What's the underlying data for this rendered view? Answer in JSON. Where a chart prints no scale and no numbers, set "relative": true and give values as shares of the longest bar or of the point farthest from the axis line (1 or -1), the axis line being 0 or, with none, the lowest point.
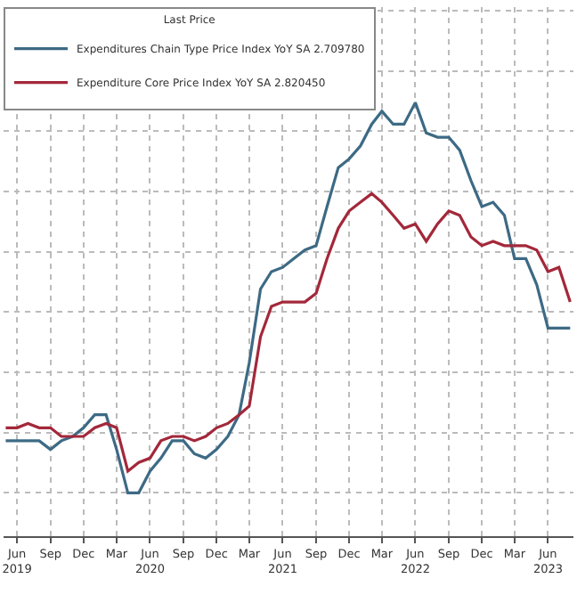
{
  "chart_data": {
    "type": "line",
    "relative": true,
    "legend_title": "Last Price",
    "legend": "top left",
    "grid": true,
    "line_style": "solid",
    "marker": "none",
    "x": [
      "2019-05",
      "2019-06",
      "2019-07",
      "2019-08",
      "2019-09",
      "2019-10",
      "2019-11",
      "2019-12",
      "2020-01",
      "2020-02",
      "2020-03",
      "2020-04",
      "2020-05",
      "2020-06",
      "2020-07",
      "2020-08",
      "2020-09",
      "2020-10",
      "2020-11",
      "2020-12",
      "2021-01",
      "2021-02",
      "2021-03",
      "2021-04",
      "2021-05",
      "2021-06",
      "2021-07",
      "2021-08",
      "2021-09",
      "2021-10",
      "2021-11",
      "2021-12",
      "2022-01",
      "2022-02",
      "2022-03",
      "2022-04",
      "2022-05",
      "2022-06",
      "2022-07",
      "2022-08",
      "2022-09",
      "2022-10",
      "2022-11",
      "2022-12",
      "2023-01",
      "2023-02",
      "2023-03",
      "2023-04",
      "2023-05",
      "2023-06",
      "2023-07",
      "2023-08"
    ],
    "xlim": [
      "2019-04-25",
      "2023-08-10"
    ],
    "xticks": [
      {
        "value": "2019-06",
        "label": "Jun\n2019"
      },
      {
        "value": "2019-09",
        "label": "Sep"
      },
      {
        "value": "2019-12",
        "label": "Dec"
      },
      {
        "value": "2020-03",
        "label": "Mar"
      },
      {
        "value": "2020-06",
        "label": "Jun\n2020"
      },
      {
        "value": "2020-09",
        "label": "Sep"
      },
      {
        "value": "2020-12",
        "label": "Dec"
      },
      {
        "value": "2021-03",
        "label": "Mar"
      },
      {
        "value": "2021-06",
        "label": "Jun\n2021"
      },
      {
        "value": "2021-09",
        "label": "Sep"
      },
      {
        "value": "2021-12",
        "label": "Dec"
      },
      {
        "value": "2022-03",
        "label": "Mar"
      },
      {
        "value": "2022-06",
        "label": "Jun\n2022"
      },
      {
        "value": "2022-09",
        "label": "Sep"
      },
      {
        "value": "2022-12",
        "label": "Dec"
      },
      {
        "value": "2023-03",
        "label": "Mar"
      },
      {
        "value": "2023-06",
        "label": "Jun\n2023"
      }
    ],
    "series": [
      {
        "name": "Expenditures Chain Type Price Index YoY SA 2.709780",
        "color": "#3d6a85",
        "values": [
          0.22,
          0.22,
          0.22,
          0.22,
          0.2,
          0.22,
          0.23,
          0.25,
          0.28,
          0.28,
          0.2,
          0.1,
          0.1,
          0.15,
          0.18,
          0.22,
          0.22,
          0.19,
          0.18,
          0.2,
          0.23,
          0.28,
          0.4,
          0.57,
          0.61,
          0.62,
          0.64,
          0.66,
          0.67,
          0.76,
          0.85,
          0.87,
          0.9,
          0.95,
          0.98,
          0.95,
          0.95,
          1,
          0.93,
          0.92,
          0.92,
          0.89,
          0.82,
          0.76,
          0.77,
          0.74,
          0.64,
          0.64,
          0.58,
          0.48,
          0.48,
          0.48
        ]
      },
      {
        "name": "Expenditure Core Price Index YoY SA 2.820450",
        "color": "#a3283a",
        "values": [
          0.25,
          0.25,
          0.26,
          0.25,
          0.25,
          0.23,
          0.23,
          0.23,
          0.25,
          0.26,
          0.25,
          0.15,
          0.17,
          0.18,
          0.22,
          0.23,
          0.23,
          0.22,
          0.23,
          0.25,
          0.26,
          0.28,
          0.3,
          0.46,
          0.53,
          0.54,
          0.54,
          0.54,
          0.56,
          0.64,
          0.71,
          0.75,
          0.77,
          0.79,
          0.77,
          0.74,
          0.71,
          0.72,
          0.68,
          0.72,
          0.75,
          0.74,
          0.69,
          0.67,
          0.68,
          0.67,
          0.67,
          0.67,
          0.66,
          0.61,
          0.62,
          0.54
        ]
      }
    ]
  }
}
